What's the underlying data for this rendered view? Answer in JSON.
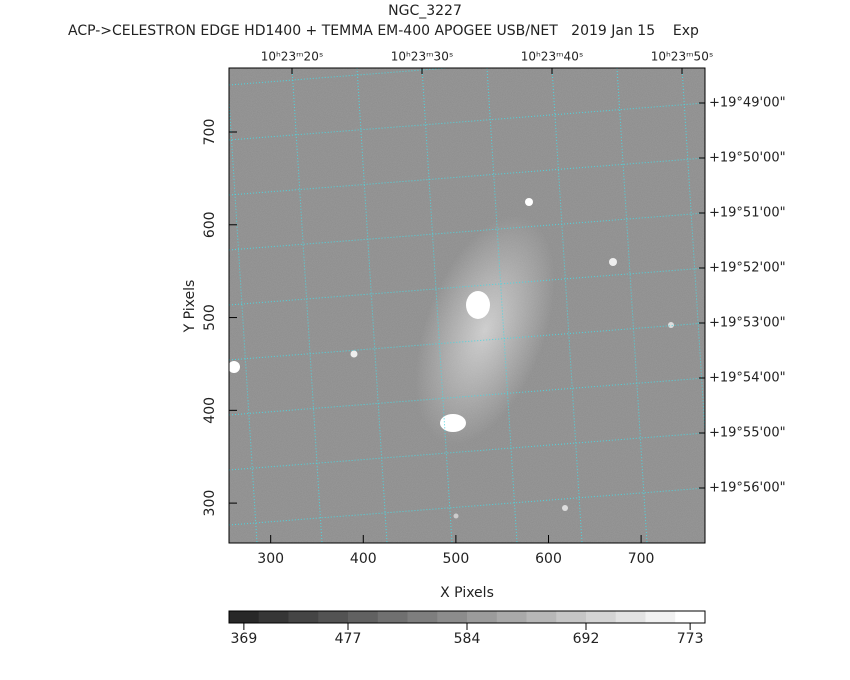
{
  "chart_data": {
    "type": "image",
    "title": "NGC_3227",
    "subtitle": "ACP->CELESTRON EDGE HD1400 + TEMMA EM-400 APOGEE USB/NET   2019 Jan 15    Exp",
    "xlabel": "X Pixels",
    "ylabel": "Y Pixels",
    "xlim": [
      255,
      769
    ],
    "ylim": [
      257,
      769
    ],
    "xticks": [
      300,
      400,
      500,
      600,
      700
    ],
    "yticks": [
      300,
      400,
      500,
      600,
      700
    ],
    "top_ticks": [
      "10ʰ23ᵐ20ˢ",
      "10ʰ23ᵐ30ˢ",
      "10ʰ23ᵐ40ˢ",
      "10ʰ23ᵐ50ˢ"
    ],
    "right_ticks": [
      "+19°49'00\"",
      "+19°50'00\"",
      "+19°51'00\"",
      "+19°52'00\"",
      "+19°53'00\"",
      "+19°54'00\"",
      "+19°55'00\"",
      "+19°56'00\""
    ],
    "colorbar_ticks": [
      369,
      477,
      584,
      692,
      773
    ]
  }
}
